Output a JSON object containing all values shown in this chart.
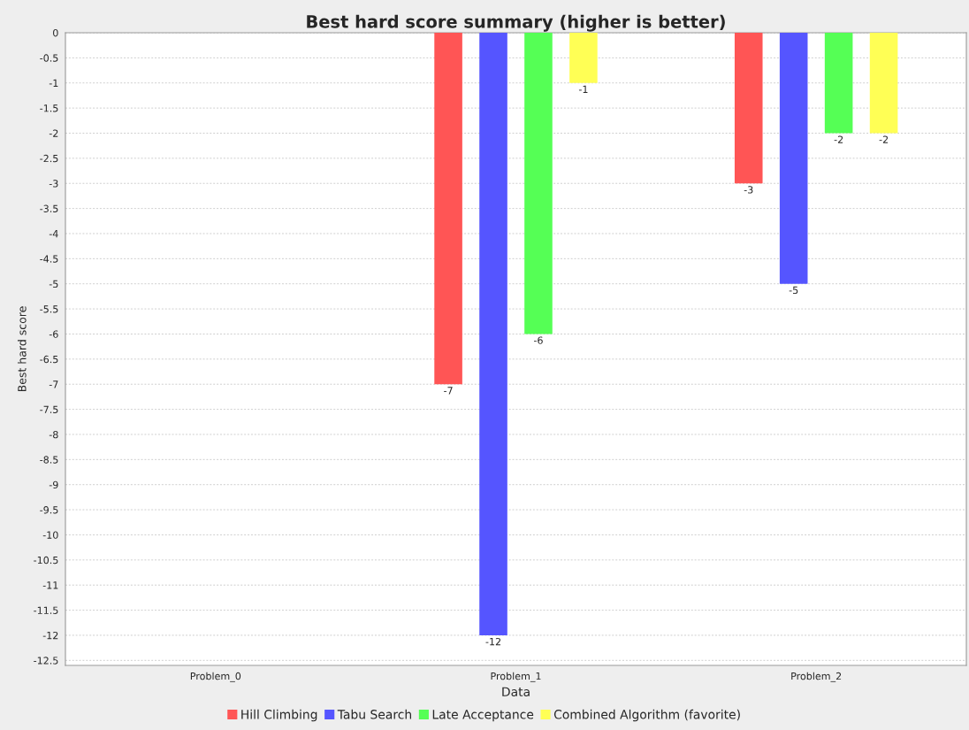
{
  "chart_data": {
    "type": "bar",
    "title": "Best hard score summary (higher is better)",
    "xlabel": "Data",
    "ylabel": "Best hard score",
    "categories": [
      "Problem_0",
      "Problem_1",
      "Problem_2"
    ],
    "series": [
      {
        "name": "Hill Climbing",
        "color": "#ff5555",
        "values": [
          null,
          -7,
          -3
        ]
      },
      {
        "name": "Tabu Search",
        "color": "#5555ff",
        "values": [
          null,
          -12,
          -5
        ]
      },
      {
        "name": "Late Acceptance",
        "color": "#55ff55",
        "values": [
          null,
          -6,
          -2
        ]
      },
      {
        "name": "Combined Algorithm (favorite)",
        "color": "#ffff55",
        "values": [
          null,
          -1,
          -2
        ]
      }
    ],
    "ylim": [
      -12.6,
      0
    ],
    "yticks": [
      0,
      -0.5,
      -1,
      -1.5,
      -2,
      -2.5,
      -3,
      -3.5,
      -4,
      -4.5,
      -5,
      -5.5,
      -6,
      -6.5,
      -7,
      -7.5,
      -8,
      -8.5,
      -9,
      -9.5,
      -10,
      -10.5,
      -11,
      -11.5,
      -12,
      -12.5
    ],
    "data_labels": true,
    "grid": "y",
    "legend": "bottom"
  }
}
